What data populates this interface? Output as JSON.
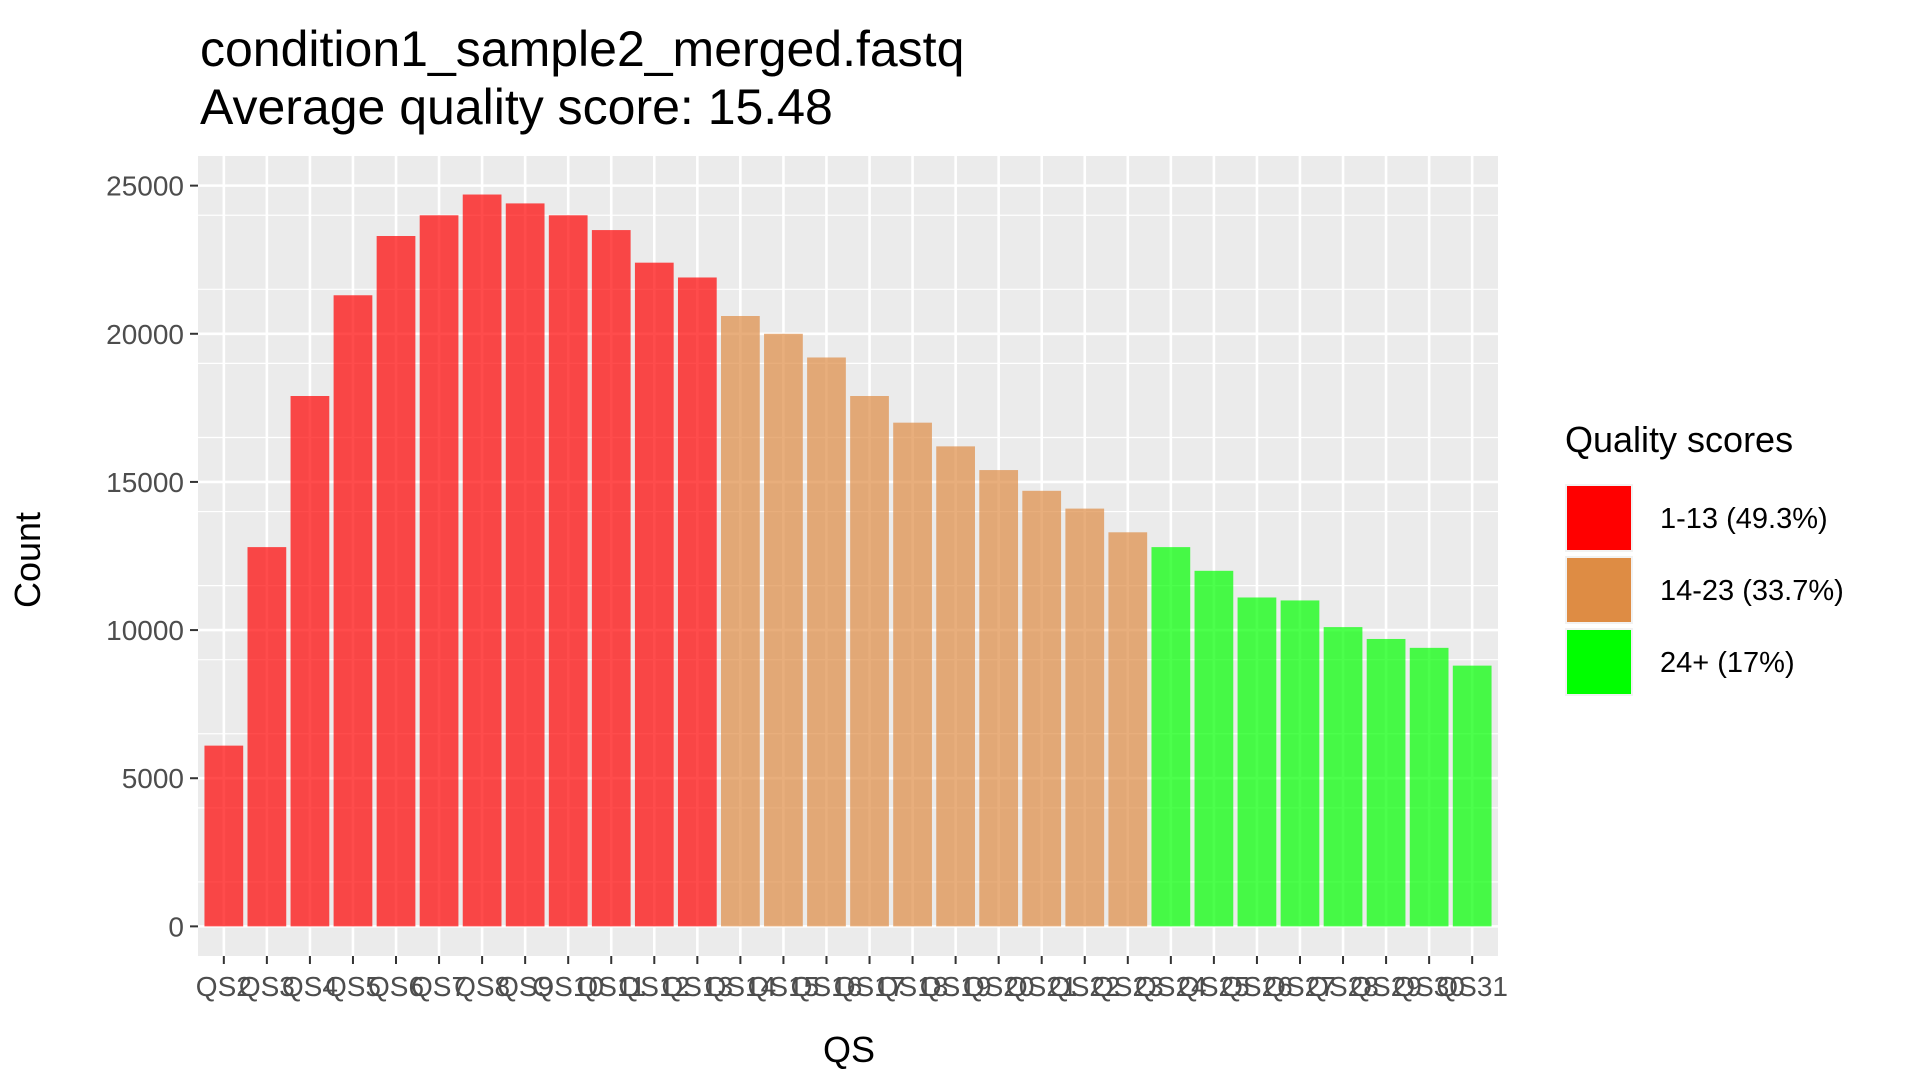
{
  "chart_data": {
    "type": "bar",
    "title": "condition1_sample2_merged.fastq",
    "subtitle": "Average quality score: 15.48",
    "xlabel": "QS",
    "ylabel": "Count",
    "ylim": [
      -1000,
      26000
    ],
    "yticks": [
      0,
      5000,
      10000,
      15000,
      20000,
      25000
    ],
    "grid": true,
    "legend_position": "right",
    "legend_title": "Quality scores",
    "categories": [
      "QS2",
      "QS3",
      "QS4",
      "QS5",
      "QS6",
      "QS7",
      "QS8",
      "QS9",
      "QS10",
      "QS11",
      "QS12",
      "QS13",
      "QS14",
      "QS15",
      "QS16",
      "QS17",
      "QS18",
      "QS19",
      "QS20",
      "QS21",
      "QS22",
      "QS23",
      "QS24",
      "QS25",
      "QS26",
      "QS27",
      "QS28",
      "QS29",
      "QS30",
      "QS31"
    ],
    "values": [
      6100,
      12800,
      17900,
      21300,
      23300,
      24000,
      24700,
      24400,
      24000,
      23500,
      22400,
      21900,
      20600,
      20000,
      19200,
      17900,
      17000,
      16200,
      15400,
      14700,
      14100,
      13300,
      12800,
      12000,
      11100,
      11000,
      10100,
      9700,
      9400,
      8800
    ],
    "groups": [
      0,
      0,
      0,
      0,
      0,
      0,
      0,
      0,
      0,
      0,
      0,
      0,
      1,
      1,
      1,
      1,
      1,
      1,
      1,
      1,
      1,
      1,
      2,
      2,
      2,
      2,
      2,
      2,
      2,
      2
    ],
    "series": [
      {
        "name": "1-13 (49.3%)",
        "color": "#ff0000"
      },
      {
        "name": "14-23 (33.7%)",
        "color": "#de8c44"
      },
      {
        "name": "24+ (17%)",
        "color": "#00ff00"
      }
    ]
  }
}
